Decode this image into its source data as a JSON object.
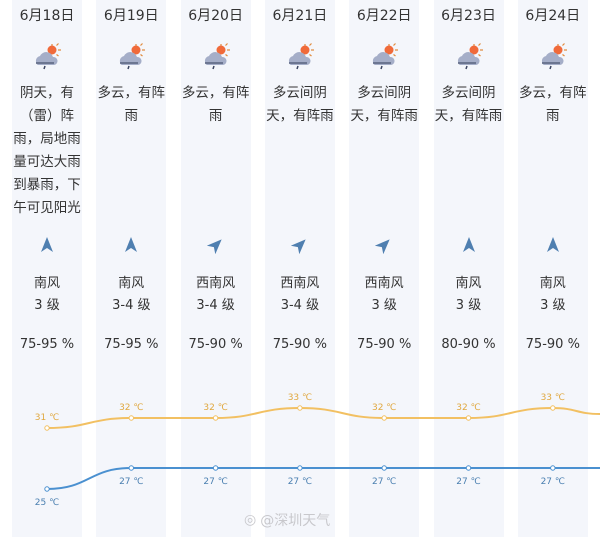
{
  "colors": {
    "high": "#f2c062",
    "low": "#4a90d0",
    "column_bg": "#f4f6fb",
    "arrow": "#4f7fb0"
  },
  "days": [
    {
      "date": "6月18日",
      "icon": "cloud-sun-rain-icon",
      "desc": [
        "阴天，有",
        "（雷）阵",
        "雨，局地雨",
        "量可达大雨",
        "到暴雨，下",
        "午可见阳光"
      ],
      "wind_arrow": "north",
      "wind_dir": "南风",
      "wind_level": "3 级",
      "humidity": "75-95 %",
      "high": "31 ℃",
      "low": "25 ℃"
    },
    {
      "date": "6月19日",
      "icon": "cloud-sun-rain-icon",
      "desc": [
        "多云，有阵",
        "雨"
      ],
      "wind_arrow": "north",
      "wind_dir": "南风",
      "wind_level": "3-4 级",
      "humidity": "75-95 %",
      "high": "32 ℃",
      "low": "27 ℃"
    },
    {
      "date": "6月20日",
      "icon": "cloud-sun-rain-icon",
      "desc": [
        "多云，有阵",
        "雨"
      ],
      "wind_arrow": "northeast",
      "wind_dir": "西南风",
      "wind_level": "3-4 级",
      "humidity": "75-90 %",
      "high": "32 ℃",
      "low": "27 ℃"
    },
    {
      "date": "6月21日",
      "icon": "cloud-sun-rain-icon",
      "desc": [
        "多云间阴",
        "天，有阵雨"
      ],
      "wind_arrow": "northeast",
      "wind_dir": "西南风",
      "wind_level": "3-4 级",
      "humidity": "75-90 %",
      "high": "33 ℃",
      "low": "27 ℃"
    },
    {
      "date": "6月22日",
      "icon": "cloud-sun-rain-icon",
      "desc": [
        "多云间阴",
        "天，有阵雨"
      ],
      "wind_arrow": "northeast",
      "wind_dir": "西南风",
      "wind_level": "3 级",
      "humidity": "75-90 %",
      "high": "32 ℃",
      "low": "27 ℃"
    },
    {
      "date": "6月23日",
      "icon": "cloud-sun-rain-icon",
      "desc": [
        "多云间阴",
        "天，有阵雨"
      ],
      "wind_arrow": "north",
      "wind_dir": "南风",
      "wind_level": "3 级",
      "humidity": "80-90 %",
      "high": "32 ℃",
      "low": "27 ℃"
    },
    {
      "date": "6月24日",
      "icon": "cloud-sun-rain-icon",
      "desc": [
        "多云，有阵",
        "雨"
      ],
      "wind_arrow": "north",
      "wind_dir": "南风",
      "wind_level": "3 级",
      "humidity": "75-90 %",
      "high": "33 ℃",
      "low": "27 ℃"
    }
  ],
  "chart_data": {
    "type": "line",
    "categories": [
      "6月18日",
      "6月19日",
      "6月20日",
      "6月21日",
      "6月22日",
      "6月23日",
      "6月24日"
    ],
    "series": [
      {
        "name": "high",
        "values": [
          31,
          32,
          32,
          33,
          32,
          32,
          33
        ]
      },
      {
        "name": "low",
        "values": [
          25,
          27,
          27,
          27,
          27,
          27,
          27
        ]
      }
    ]
  },
  "watermark": "@深圳天气"
}
